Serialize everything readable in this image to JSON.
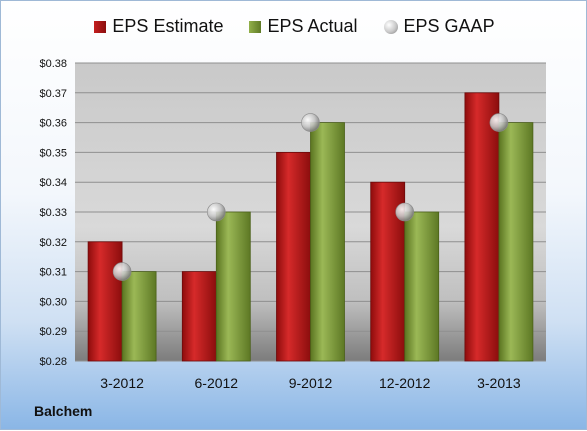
{
  "company": "Balchem",
  "colors": {
    "estimate": "#c41f1f",
    "actual": "#7f9a34",
    "gaap": "#bcbcbc"
  },
  "chart_data": {
    "type": "bar",
    "title": "",
    "xlabel": "",
    "ylabel": "",
    "ylim": [
      0.28,
      0.38
    ],
    "yticks": [
      "$0.38",
      "$0.37",
      "$0.36",
      "$0.35",
      "$0.34",
      "$0.33",
      "$0.32",
      "$0.31",
      "$0.30",
      "$0.29",
      "$0.28"
    ],
    "categories": [
      "3-2012",
      "6-2012",
      "9-2012",
      "12-2012",
      "3-2013"
    ],
    "series": [
      {
        "name": "EPS Estimate",
        "values": [
          0.32,
          0.31,
          0.35,
          0.34,
          0.37
        ]
      },
      {
        "name": "EPS Actual",
        "values": [
          0.31,
          0.33,
          0.36,
          0.33,
          0.36
        ]
      },
      {
        "name": "EPS GAAP",
        "values": [
          0.31,
          0.33,
          0.36,
          0.33,
          0.36
        ]
      }
    ],
    "legend_position": "top"
  }
}
